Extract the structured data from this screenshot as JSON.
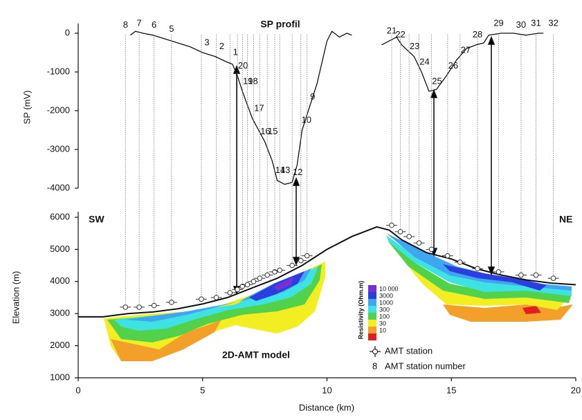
{
  "chart_data": {
    "type": "line",
    "title": "SP profil",
    "xlabel": "Distance (km)",
    "ylabel": "SP (mV)",
    "y2label": "Elevation (m)",
    "xlim": [
      0,
      20
    ],
    "xticks": [
      0,
      5,
      10,
      15,
      20
    ],
    "ylim": [
      -4000,
      250
    ],
    "yticks": [
      0,
      -1000,
      -2000,
      -3000,
      -4000
    ],
    "y2lim": [
      1000,
      6000
    ],
    "y2ticks": [
      1000,
      2000,
      3000,
      4000,
      5000,
      6000
    ],
    "sp": {
      "x": [
        2.1,
        2.3,
        2.6,
        3,
        3.5,
        4,
        4.5,
        5,
        5.5,
        6,
        6.2,
        6.4,
        6.6,
        7,
        7.5,
        7.8,
        8,
        8.3,
        8.6,
        8.8,
        9,
        9.3,
        9.6,
        10,
        10.2,
        10.5,
        10.8,
        11,
        null,
        12.2,
        12.5,
        12.8,
        13,
        13.5,
        13.8,
        14.1,
        14.4,
        14.8,
        15.2,
        15.6,
        16,
        16.3,
        16.5,
        17,
        17.5,
        18,
        18.5,
        18.7
      ],
      "values": [
        -50,
        50,
        0,
        -50,
        -150,
        -250,
        -350,
        -500,
        -600,
        -750,
        -800,
        -1100,
        -1500,
        -2200,
        -2800,
        -3300,
        -3800,
        -3900,
        -3850,
        -3400,
        -2500,
        -1900,
        -1300,
        -200,
        50,
        -100,
        0,
        -50,
        null,
        -300,
        -200,
        -100,
        -300,
        -600,
        -1000,
        -1500,
        -1450,
        -1100,
        -700,
        -400,
        -300,
        -250,
        -50,
        0,
        0,
        -50,
        0,
        0
      ],
      "color": "#111"
    },
    "topography": {
      "x": [
        0,
        1,
        1.5,
        2,
        3,
        4,
        5,
        6,
        7,
        8,
        9,
        10,
        11,
        12,
        12.5,
        13,
        14,
        15,
        16,
        17,
        18,
        19,
        20
      ],
      "values": [
        2900,
        2900,
        2950,
        3000,
        3050,
        3150,
        3300,
        3500,
        3800,
        4100,
        4500,
        5000,
        5400,
        5700,
        5600,
        5300,
        4900,
        4700,
        4400,
        4200,
        4050,
        3950,
        3900
      ],
      "color": "#111"
    },
    "stations": {
      "labels": [
        "8",
        "7",
        "6",
        "5",
        "3",
        "2",
        "1",
        "20",
        "19",
        "18",
        "17",
        "16",
        "15",
        "14",
        "13",
        "12",
        "10",
        "9",
        "21",
        "22",
        "23",
        "24",
        "25",
        "26",
        "27",
        "28",
        "29",
        "30",
        "31",
        "32"
      ],
      "x": [
        1.9,
        2.45,
        3.05,
        3.75,
        4.95,
        5.55,
        6.1,
        6.4,
        6.6,
        6.8,
        7.05,
        7.3,
        7.6,
        7.9,
        8.1,
        8.6,
        8.95,
        9.2,
        12.6,
        12.95,
        13.3,
        13.7,
        14.2,
        14.85,
        15.35,
        16.05,
        16.9,
        17.8,
        18.4,
        19.1
      ],
      "elevation": [
        3200,
        3200,
        3250,
        3350,
        3450,
        3500,
        3650,
        3750,
        3850,
        3900,
        4000,
        4100,
        4200,
        4300,
        4350,
        4500,
        4650,
        4800,
        5750,
        5550,
        5400,
        5200,
        5000,
        4800,
        4600,
        4400,
        4300,
        4200,
        4200,
        4100
      ]
    },
    "annotations": {
      "sw": "SW",
      "ne": "NE",
      "model": "2D-AMT model"
    },
    "legend": {
      "station": "AMT station",
      "number_example": "8",
      "number": "AMT station number"
    },
    "colorbar": {
      "title": "Resistivity (Ohm.m)",
      "labels": [
        "10 000",
        "3000",
        "1000",
        "300",
        "100",
        "30",
        "10"
      ],
      "colors": [
        "#7a2fd6",
        "#2b3fe0",
        "#3fa6f2",
        "#3fe2e2",
        "#52d24a",
        "#f2ee22",
        "#f2a02a",
        "#e0201e"
      ]
    }
  }
}
